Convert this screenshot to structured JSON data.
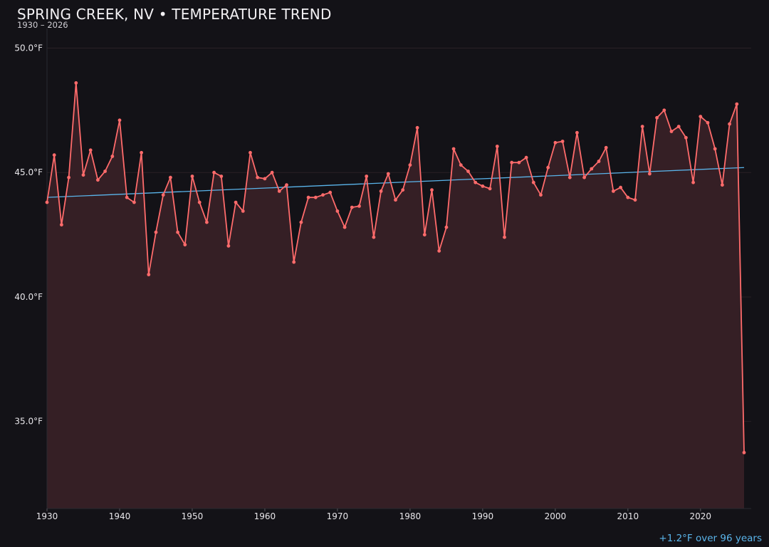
{
  "chart_data": {
    "type": "line",
    "title": "SPRING CREEK, NV • TEMPERATURE TREND",
    "subtitle": "1930 – 2026",
    "trend_note": "+1.2°F over 96 years",
    "x_ticks": [
      "1930",
      "1940",
      "1950",
      "1960",
      "1970",
      "1980",
      "1990",
      "2000",
      "2010",
      "2020"
    ],
    "y_ticks": [
      {
        "value": 35.0,
        "label": "35.0°F"
      },
      {
        "value": 40.0,
        "label": "40.0°F"
      },
      {
        "value": 45.0,
        "label": "45.0°F"
      },
      {
        "value": 50.0,
        "label": "50.0°F"
      }
    ],
    "xlim": [
      1930,
      2026
    ],
    "ylim": [
      31.5,
      50.5
    ],
    "grid": true,
    "colors": {
      "series": "#ff6b6b",
      "area_fill": "#351f25",
      "trend": "#5ab4ea",
      "grid": "#2a2026",
      "background": "#131217"
    },
    "series": [
      {
        "x": [
          1930,
          1931,
          1932,
          1933,
          1934,
          1935,
          1936,
          1937,
          1938,
          1939,
          1940,
          1941,
          1942,
          1943,
          1944,
          1945,
          1946,
          1947,
          1948,
          1949,
          1950,
          1951,
          1952,
          1953,
          1954,
          1955,
          1956,
          1957,
          1958,
          1959,
          1960,
          1961,
          1962,
          1963,
          1964,
          1965,
          1966,
          1967,
          1968,
          1969,
          1970,
          1971,
          1972,
          1973,
          1974,
          1975,
          1976,
          1977,
          1978,
          1979,
          1980,
          1981,
          1982,
          1983,
          1984,
          1985,
          1986,
          1987,
          1988,
          1989,
          1990,
          1991,
          1992,
          1993,
          1994,
          1995,
          1996,
          1997,
          1998,
          1999,
          2000,
          2001,
          2002,
          2003,
          2004,
          2005,
          2006,
          2007,
          2008,
          2009,
          2010,
          2011,
          2012,
          2013,
          2014,
          2015,
          2016,
          2017,
          2018,
          2019,
          2020,
          2021,
          2022,
          2023,
          2024,
          2025,
          2026
        ],
        "values": [
          43.8,
          45.7,
          42.9,
          44.8,
          48.6,
          44.9,
          45.9,
          44.7,
          45.05,
          45.65,
          47.1,
          44.0,
          43.8,
          45.8,
          40.9,
          42.6,
          44.1,
          44.8,
          42.6,
          42.1,
          44.85,
          43.8,
          43.0,
          45.0,
          44.85,
          42.05,
          43.8,
          43.45,
          45.8,
          44.8,
          44.75,
          45.0,
          44.25,
          44.5,
          41.4,
          43.0,
          44.0,
          44.0,
          44.1,
          44.2,
          43.45,
          42.8,
          43.6,
          43.65,
          44.85,
          42.4,
          44.25,
          44.95,
          43.9,
          44.3,
          45.3,
          46.8,
          42.5,
          44.3,
          41.85,
          42.8,
          45.95,
          45.3,
          45.05,
          44.6,
          44.45,
          44.35,
          46.05,
          42.4,
          45.4,
          45.4,
          45.6,
          44.6,
          44.1,
          45.2,
          46.2,
          46.25,
          44.8,
          46.6,
          44.8,
          45.15,
          45.45,
          46.0,
          44.25,
          44.4,
          44.0,
          43.9,
          46.85,
          44.95,
          47.2,
          47.5,
          46.65,
          46.85,
          46.4,
          44.6,
          47.25,
          47.0,
          45.95,
          44.5,
          46.95,
          47.75,
          33.75
        ]
      }
    ],
    "trend": {
      "x": [
        1930,
        2026
      ],
      "y": [
        44.0,
        45.2
      ]
    }
  }
}
